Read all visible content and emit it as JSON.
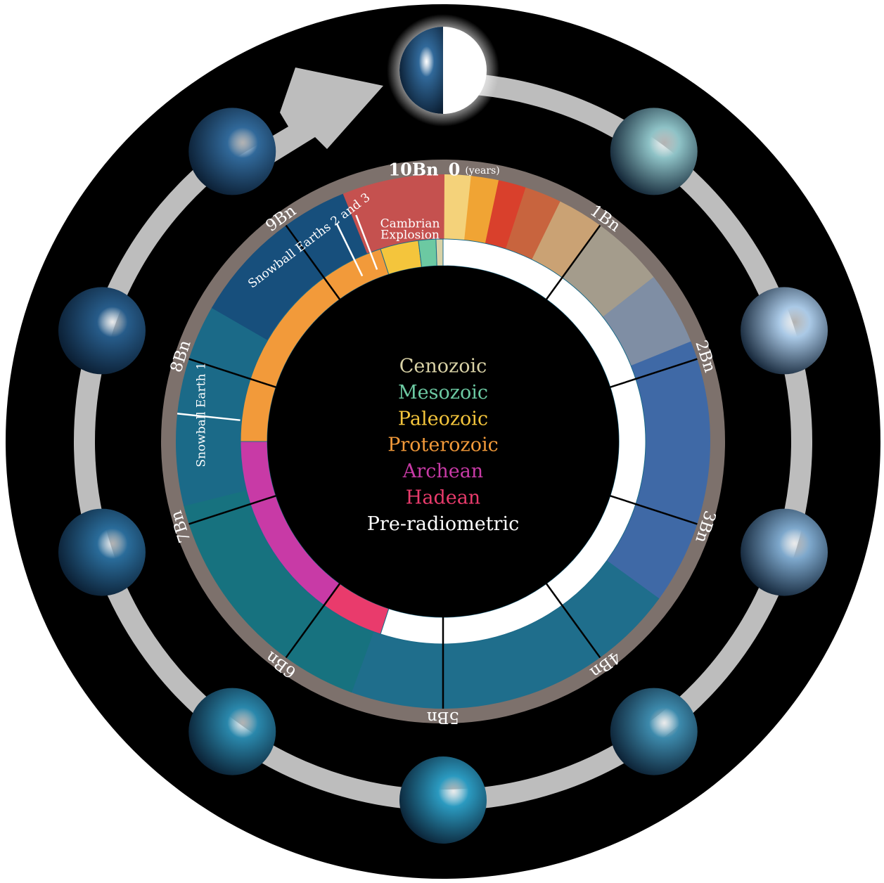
{
  "timeline": {
    "start": "10Bn",
    "zero": "0",
    "unit": "(years)",
    "ticks": [
      "1Bn",
      "2Bn",
      "3Bn",
      "4Bn",
      "5Bn",
      "6Bn",
      "7Bn",
      "8Bn",
      "9Bn"
    ]
  },
  "annotations": {
    "cambrian": [
      "Cambrian",
      "Explosion"
    ],
    "snowball_2_3": "Snowball Earths 2 and 3",
    "snowball_1": "Snowball Earth 1"
  },
  "legend": [
    {
      "label": "Cenozoic",
      "color": "#d9d2a6"
    },
    {
      "label": "Mesozoic",
      "color": "#6cc9a2"
    },
    {
      "label": "Paleozoic",
      "color": "#f4c53c"
    },
    {
      "label": "Proterozoic",
      "color": "#f29a3a"
    },
    {
      "label": "Archean",
      "color": "#c83aa6"
    },
    {
      "label": "Hadean",
      "color": "#e93b6c"
    },
    {
      "label": "Pre-radiometric",
      "color": "#ffffff"
    }
  ]
}
